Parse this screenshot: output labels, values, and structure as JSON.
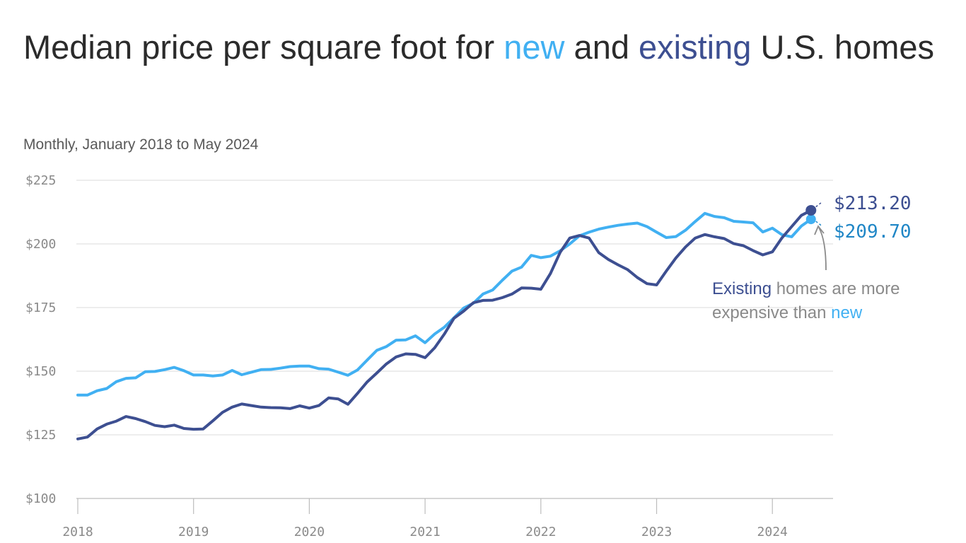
{
  "title": {
    "part1": "Median price per square foot for ",
    "new_word": "new",
    "part2": " and ",
    "existing_word": "existing",
    "part3": " U.S. homes"
  },
  "subtitle": "Monthly, January 2018 to May 2024",
  "annotation": {
    "existing_word": "Existing",
    "middle": " homes are more expensive than ",
    "new_word": "new"
  },
  "colors": {
    "new": "#41b0f2",
    "existing": "#3d4f91",
    "new_label": "#1f86c6",
    "grid": "#e2e2e2",
    "text": "#2b2b2b"
  },
  "chart_data": {
    "type": "line",
    "title": "Median price per square foot for new and existing U.S. homes",
    "subtitle": "Monthly, January 2018 to May 2024",
    "xlabel": "",
    "ylabel": "",
    "ylim": [
      100,
      225
    ],
    "y_ticks": [
      {
        "value": 100,
        "label": "$100"
      },
      {
        "value": 125,
        "label": "$125"
      },
      {
        "value": 150,
        "label": "$150"
      },
      {
        "value": 175,
        "label": "$175"
      },
      {
        "value": 200,
        "label": "$200"
      },
      {
        "value": 225,
        "label": "$225"
      }
    ],
    "x_ticks": [
      "2018",
      "2019",
      "2020",
      "2021",
      "2022",
      "2023",
      "2024"
    ],
    "x_start": "2018-01",
    "x_end": "2024-05",
    "grid": true,
    "legend": "none",
    "series": [
      {
        "name": "new",
        "end_label": "$209.70",
        "values": [
          140.6,
          140.6,
          142.3,
          143.2,
          145.9,
          147.2,
          147.4,
          149.8,
          149.9,
          150.6,
          151.5,
          150.2,
          148.5,
          148.5,
          148.1,
          148.5,
          150.3,
          148.6,
          149.6,
          150.6,
          150.7,
          151.2,
          151.8,
          152.0,
          152.0,
          151.0,
          150.8,
          149.6,
          148.4,
          150.5,
          154.4,
          158.2,
          159.7,
          162.2,
          162.3,
          163.9,
          161.2,
          164.6,
          167.3,
          171.0,
          174.8,
          176.7,
          180.3,
          181.9,
          185.7,
          189.3,
          190.9,
          195.5,
          194.6,
          195.2,
          197.3,
          200.0,
          203.2,
          204.6,
          205.8,
          206.6,
          207.3,
          207.8,
          208.2,
          206.8,
          204.6,
          202.5,
          202.9,
          205.4,
          208.8,
          212.0,
          210.8,
          210.3,
          208.9,
          208.6,
          208.3,
          204.7,
          206.2,
          203.6,
          202.8,
          207.0,
          209.7
        ]
      },
      {
        "name": "existing",
        "end_label": "$213.20",
        "values": [
          123.4,
          124.1,
          127.3,
          129.2,
          130.4,
          132.2,
          131.4,
          130.2,
          128.7,
          128.2,
          128.8,
          127.5,
          127.2,
          127.3,
          130.5,
          133.8,
          135.9,
          137.1,
          136.5,
          135.9,
          135.7,
          135.6,
          135.3,
          136.4,
          135.5,
          136.5,
          139.5,
          139.1,
          137.0,
          141.3,
          145.8,
          149.3,
          152.9,
          155.6,
          156.8,
          156.6,
          155.3,
          159.2,
          164.6,
          170.8,
          173.6,
          176.9,
          177.8,
          177.9,
          178.9,
          180.3,
          182.7,
          182.6,
          182.2,
          188.4,
          196.7,
          202.3,
          203.3,
          202.3,
          196.6,
          193.9,
          191.8,
          189.9,
          186.8,
          184.4,
          183.9,
          189.3,
          194.5,
          198.8,
          202.3,
          203.7,
          202.8,
          202.1,
          200.1,
          199.3,
          197.4,
          195.7,
          196.9,
          202.4,
          206.8,
          211.2,
          213.2
        ]
      }
    ]
  }
}
